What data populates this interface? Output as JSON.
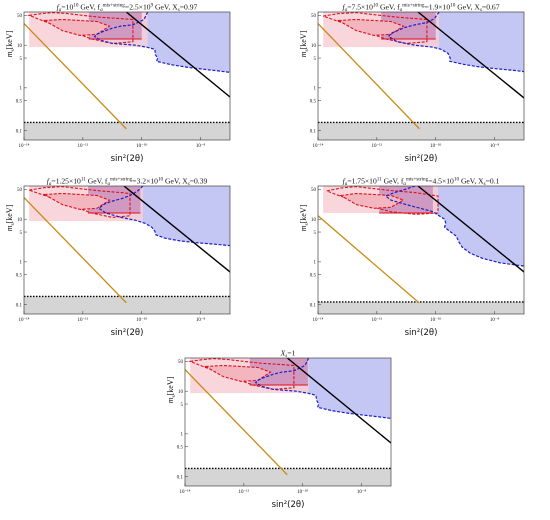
{
  "colors": {
    "blue_fill": "#c4c6f4",
    "blue_line": "#1a1fc9",
    "pink_fill": "#f7cfd6",
    "purple_fill": "#c78cba",
    "red_line": "#e00f1a",
    "black_line": "#000000",
    "orange_line": "#c98a12",
    "gray_fill": "#d5d5d5"
  },
  "chart_data": [
    {
      "type": "area",
      "title_prefix": "f",
      "title_sub1": "a",
      "title_mid": "=10",
      "title_sup1": "10",
      "title_after1": " GeV, f",
      "title_sub2": "a",
      "title_sup2": "mis+string",
      "title_after2": "=2.5×10",
      "title_sup3": "9",
      "title_after3": " GeV, X",
      "title_sub3": "s",
      "title_after4": "=0.97",
      "xlabel": "sin²(2θ)",
      "ylabel_main": "m",
      "ylabel_sub": "s",
      "ylabel_unit": "[keV]",
      "x_scale": "log",
      "xlim": [
        1e-14,
        1e-07
      ],
      "y_scale": "log",
      "ylim": [
        0.06,
        60
      ],
      "x_ticks": [
        "10⁻¹⁴",
        "10⁻¹²",
        "10⁻¹⁰",
        "10⁻⁸"
      ],
      "y_ticks": [
        "0.1",
        "0.5",
        "1",
        "5",
        "10",
        "50"
      ],
      "series": [
        {
          "kind": "blue_boundary",
          "x": [
            1.6e-10,
            1.2e-10,
            8e-11,
            5e-11,
            2e-11,
            1e-11,
            6e-12,
            4e-12,
            3e-12,
            2.5e-12,
            4e-12,
            1e-11,
            6e-11,
            1.5e-10,
            2.8e-10,
            2.9e-10,
            3.5e-10,
            3.2e-10,
            1e-09,
            4e-09,
            1.5e-08,
            4e-08,
            1e-07
          ],
          "y": [
            60,
            40,
            35,
            30,
            28,
            25,
            22,
            20,
            18,
            16,
            13,
            11,
            10,
            9,
            8,
            6,
            5,
            4.2,
            3.5,
            3.0,
            2.7,
            2.5,
            2.3
          ]
        },
        {
          "kind": "purple_region",
          "x": [
            1.6e-12,
            1e-10
          ],
          "y": [
            14,
            60
          ]
        },
        {
          "kind": "pink_region",
          "x": [
            1.5e-14,
            1.6e-10
          ],
          "y": [
            9,
            60
          ]
        },
        {
          "kind": "red_contour_outer",
          "x": [
            1.5e-14,
            4e-14,
            1e-13,
            3e-13,
            1e-12,
            4e-12,
            2e-11,
            5e-11,
            5e-11,
            1e-11,
            2e-12,
            5e-13,
            1.5e-13,
            5e-14,
            1.5e-14
          ],
          "y": [
            50,
            55,
            58,
            55,
            50,
            45,
            42,
            40,
            12,
            11,
            14,
            20,
            28,
            36,
            50
          ]
        },
        {
          "kind": "red_contour_inner",
          "x": [
            5e-14,
            2e-13,
            8e-13,
            3e-12,
            8e-12,
            3e-12,
            8e-13,
            2e-13,
            5e-14
          ],
          "y": [
            38,
            40,
            38,
            36,
            28,
            18,
            17,
            22,
            38
          ]
        },
        {
          "kind": "black_line",
          "x": [
            3e-11,
            1.2e-07
          ],
          "y": [
            60,
            0.55
          ]
        },
        {
          "kind": "orange_line",
          "x": [
            1e-14,
            3e-11
          ],
          "y": [
            32,
            0.11
          ]
        },
        {
          "kind": "gray_region",
          "y": [
            0.06,
            0.155
          ]
        }
      ]
    },
    {
      "type": "area",
      "title_prefix": "f",
      "title_sub1": "a",
      "title_mid": "=7.5×10",
      "title_sup1": "10",
      "title_after1": " GeV, f",
      "title_sub2": "a",
      "title_sup2": "mis+string",
      "title_after2": "=1.9×10",
      "title_sup3": "10",
      "title_after3": " GeV, X",
      "title_sub3": "s",
      "title_after4": "=0.67",
      "xlabel": "sin²(2θ)",
      "ylabel_main": "m",
      "ylabel_sub": "s",
      "ylabel_unit": "[keV]",
      "x_scale": "log",
      "xlim": [
        1e-14,
        1e-07
      ],
      "y_scale": "log",
      "ylim": [
        0.06,
        60
      ],
      "x_ticks": [
        "10⁻¹⁴",
        "10⁻¹²",
        "10⁻¹⁰",
        "10⁻⁸"
      ],
      "y_ticks": [
        "0.1",
        "0.5",
        "1",
        "5",
        "10",
        "50"
      ],
      "series": [
        {
          "kind": "blue_boundary",
          "x": [
            1.3e-10,
            9e-11,
            5e-11,
            2e-11,
            9e-12,
            5e-12,
            3e-12,
            2.5e-12,
            5e-12,
            2e-11,
            8e-11,
            1.5e-10,
            2.6e-10,
            3.1e-10,
            3e-10,
            8e-10,
            3e-09,
            1.2e-08,
            4e-08,
            1e-07
          ],
          "y": [
            60,
            42,
            34,
            30,
            26,
            22,
            19,
            16,
            12,
            10,
            9,
            8,
            6.5,
            5,
            4.2,
            3.6,
            3.1,
            2.8,
            2.6,
            2.4
          ]
        },
        {
          "kind": "purple_region",
          "x": [
            1.4e-12,
            1e-10
          ],
          "y": [
            14,
            60
          ]
        },
        {
          "kind": "pink_region",
          "x": [
            1.5e-14,
            1.3e-10
          ],
          "y": [
            9,
            60
          ]
        },
        {
          "kind": "red_contour_outer",
          "x": [
            1.5e-14,
            5e-14,
            2e-13,
            8e-13,
            4e-12,
            2e-11,
            5e-11,
            5e-11,
            1e-11,
            2e-12,
            5e-13,
            1.5e-13,
            5e-14,
            1.5e-14
          ],
          "y": [
            48,
            55,
            58,
            52,
            46,
            42,
            40,
            12,
            11,
            14,
            20,
            28,
            36,
            48
          ]
        },
        {
          "kind": "red_contour_inner",
          "x": [
            5e-14,
            2e-13,
            8e-13,
            3e-12,
            8e-12,
            3e-12,
            8e-13,
            2e-13,
            5e-14
          ],
          "y": [
            38,
            40,
            38,
            36,
            28,
            18,
            17,
            22,
            38
          ]
        },
        {
          "kind": "black_line",
          "x": [
            2.5e-11,
            1.1e-07
          ],
          "y": [
            60,
            0.55
          ]
        },
        {
          "kind": "orange_line",
          "x": [
            1e-14,
            2.8e-11
          ],
          "y": [
            32,
            0.11
          ]
        },
        {
          "kind": "gray_region",
          "y": [
            0.06,
            0.155
          ]
        }
      ]
    },
    {
      "type": "area",
      "title_prefix": "f",
      "title_sub1": "a",
      "title_mid": "=1.25×10",
      "title_sup1": "11",
      "title_after1": " GeV, f",
      "title_sub2": "a",
      "title_sup2": "mis+string",
      "title_after2": "=3.2×10",
      "title_sup3": "10",
      "title_after3": " GeV, X",
      "title_sub3": "s",
      "title_after4": "=0.39",
      "xlabel": "sin²(2θ)",
      "ylabel_main": "m",
      "ylabel_sub": "s",
      "ylabel_unit": "[keV]",
      "x_scale": "log",
      "xlim": [
        1e-14,
        1e-07
      ],
      "y_scale": "log",
      "ylim": [
        0.06,
        60
      ],
      "x_ticks": [
        "10⁻¹⁴",
        "10⁻¹²",
        "10⁻¹⁰",
        "10⁻⁸"
      ],
      "y_ticks": [
        "0.1",
        "0.5",
        "1",
        "5",
        "10",
        "50"
      ],
      "series": [
        {
          "kind": "blue_boundary",
          "x": [
            1.1e-10,
            7e-11,
            4e-11,
            2e-11,
            9e-12,
            5e-12,
            3.5e-12,
            6e-12,
            2e-11,
            6e-11,
            1.3e-10,
            2.2e-10,
            2.8e-10,
            3e-10,
            6e-10,
            2e-09,
            8e-09,
            3e-08,
            1e-07
          ],
          "y": [
            60,
            45,
            36,
            30,
            26,
            22,
            18,
            14,
            11,
            9.5,
            8,
            6.5,
            5.2,
            4.3,
            3.6,
            3.1,
            2.8,
            2.6,
            2.4
          ]
        },
        {
          "kind": "purple_region",
          "x": [
            1.5e-12,
            9e-11
          ],
          "y": [
            14,
            60
          ]
        },
        {
          "kind": "pink_region",
          "x": [
            1.5e-14,
            1.1e-10
          ],
          "y": [
            9,
            60
          ]
        },
        {
          "kind": "red_contour_outer",
          "x": [
            1.5e-14,
            5e-14,
            2e-13,
            8e-13,
            4e-12,
            2e-11,
            4e-11,
            4e-11,
            1e-11,
            2e-12,
            5e-13,
            1.5e-13,
            5e-14,
            1.5e-14
          ],
          "y": [
            48,
            55,
            58,
            52,
            46,
            42,
            40,
            12,
            11,
            14,
            20,
            28,
            36,
            48
          ]
        },
        {
          "kind": "red_contour_inner",
          "x": [
            5e-14,
            2e-13,
            8e-13,
            3e-12,
            8e-12,
            3e-12,
            8e-13,
            2e-13,
            5e-14
          ],
          "y": [
            38,
            40,
            38,
            36,
            28,
            18,
            17,
            22,
            38
          ]
        },
        {
          "kind": "black_line",
          "x": [
            2.5e-11,
            1.1e-07
          ],
          "y": [
            60,
            0.55
          ]
        },
        {
          "kind": "orange_line",
          "x": [
            1e-14,
            3e-11
          ],
          "y": [
            32,
            0.11
          ]
        },
        {
          "kind": "gray_region",
          "y": [
            0.06,
            0.155
          ]
        }
      ]
    },
    {
      "type": "area",
      "title_prefix": "f",
      "title_sub1": "a",
      "title_mid": "=1.75×10",
      "title_sup1": "11",
      "title_after1": " GeV, f",
      "title_sub2": "a",
      "title_sup2": "mis+string",
      "title_after2": "=4.5×10",
      "title_sup3": "10",
      "title_after3": " GeV, X",
      "title_sub3": "s",
      "title_after4": "=0.1",
      "xlabel": "sin²(2θ)",
      "ylabel_main": "m",
      "ylabel_sub": "s",
      "ylabel_unit": "[keV]",
      "x_scale": "log",
      "xlim": [
        1e-14,
        1e-07
      ],
      "y_scale": "log",
      "ylim": [
        0.06,
        60
      ],
      "x_ticks": [
        "10⁻¹⁴",
        "10⁻¹²",
        "10⁻¹⁰",
        "10⁻⁸"
      ],
      "y_ticks": [
        "0.1",
        "0.5",
        "1",
        "5",
        "10",
        "50"
      ],
      "series": [
        {
          "kind": "blue_boundary",
          "x": [
            2e-11,
            9e-12,
            4e-12,
            2e-12,
            3e-12,
            1e-11,
            3e-11,
            8e-11,
            1.3e-10,
            2e-10,
            2.2e-10,
            2e-10,
            3e-10,
            5e-10,
            6e-10,
            8e-10,
            1.5e-09,
            4e-09,
            1.5e-08,
            5e-08,
            1e-07
          ],
          "y": [
            60,
            50,
            42,
            35,
            28,
            22,
            18,
            15,
            12,
            10,
            8,
            6.5,
            5.2,
            4,
            3,
            2.2,
            1.6,
            1.2,
            0.95,
            0.85,
            0.8
          ]
        },
        {
          "kind": "purple_region",
          "x": [
            1.2e-12,
            8e-11
          ],
          "y": [
            14,
            60
          ]
        },
        {
          "kind": "pink_region",
          "x": [
            1.5e-14,
            1.2e-10
          ],
          "y": [
            14,
            60
          ]
        },
        {
          "kind": "red_contour_outer",
          "x": [
            2e-14,
            6e-14,
            2e-13,
            8e-13,
            4e-12,
            2e-11,
            1.2e-10,
            1.2e-10,
            2e-11,
            3e-12,
            6e-13,
            1.5e-13,
            5e-14,
            2e-14
          ],
          "y": [
            46,
            54,
            58,
            52,
            46,
            42,
            35,
            14,
            13,
            15,
            20,
            28,
            36,
            46
          ]
        },
        {
          "kind": "red_contour_inner",
          "x": [
            6e-14,
            2e-13,
            8e-13,
            3e-12,
            8e-12,
            3e-12,
            8e-13,
            2e-13,
            6e-14
          ],
          "y": [
            36,
            40,
            38,
            36,
            28,
            19,
            18,
            22,
            36
          ]
        },
        {
          "kind": "black_line",
          "x": [
            2.5e-11,
            1.1e-07
          ],
          "y": [
            60,
            0.55
          ]
        },
        {
          "kind": "orange_line",
          "x": [
            1e-14,
            2.7e-11
          ],
          "y": [
            12,
            0.11
          ]
        },
        {
          "kind": "gray_region",
          "y": [
            0.06,
            0.115
          ]
        }
      ]
    },
    {
      "type": "area",
      "title_prefix": "X",
      "title_sub1": "s",
      "title_mid": "=1",
      "title_sup1": "",
      "title_after1": "",
      "title_sub2": "",
      "title_sup2": "",
      "title_after2": "",
      "title_sup3": "",
      "title_after3": "",
      "title_sub3": "",
      "title_after4": "",
      "xlabel": "sin²(2θ)",
      "ylabel_main": "m",
      "ylabel_sub": "s",
      "ylabel_unit": "[keV]",
      "x_scale": "log",
      "xlim": [
        1e-14,
        1e-07
      ],
      "y_scale": "log",
      "ylim": [
        0.06,
        60
      ],
      "x_ticks": [
        "10⁻¹⁴",
        "10⁻¹²",
        "10⁻¹⁰",
        "10⁻⁸"
      ],
      "y_ticks": [
        "0.1",
        "0.5",
        "1",
        "5",
        "10",
        "50"
      ],
      "series": [
        {
          "kind": "blue_boundary",
          "x": [
            1.6e-10,
            1.2e-10,
            8e-11,
            5e-11,
            2e-11,
            1e-11,
            6e-12,
            4e-12,
            3e-12,
            2.5e-12,
            4e-12,
            1e-11,
            6e-11,
            1.5e-10,
            2.8e-10,
            3e-10,
            3.5e-10,
            3.2e-10,
            1e-09,
            4e-09,
            1.5e-08,
            4e-08,
            1e-07
          ],
          "y": [
            60,
            40,
            35,
            30,
            28,
            25,
            22,
            20,
            18,
            16,
            13,
            11,
            10,
            9,
            8,
            6,
            5,
            4.2,
            3.5,
            3.0,
            2.7,
            2.5,
            2.3
          ]
        },
        {
          "kind": "purple_region",
          "x": [
            1.6e-12,
            1.5e-10
          ],
          "y": [
            14,
            60
          ]
        },
        {
          "kind": "pink_region",
          "x": [
            1.5e-14,
            1.6e-10
          ],
          "y": [
            9,
            60
          ]
        },
        {
          "kind": "red_contour_outer",
          "x": [
            1.5e-14,
            4e-14,
            1e-13,
            3e-13,
            1e-12,
            4e-12,
            2e-11,
            5e-11,
            5e-11,
            1e-11,
            2e-12,
            5e-13,
            1.5e-13,
            5e-14,
            1.5e-14
          ],
          "y": [
            50,
            55,
            58,
            55,
            50,
            45,
            42,
            40,
            12,
            11,
            14,
            20,
            28,
            36,
            50
          ]
        },
        {
          "kind": "red_contour_inner",
          "x": [
            5e-14,
            2e-13,
            8e-13,
            3e-12,
            8e-12,
            3e-12,
            8e-13,
            2e-13,
            5e-14
          ],
          "y": [
            38,
            40,
            38,
            36,
            28,
            18,
            17,
            22,
            38
          ]
        },
        {
          "kind": "black_line",
          "x": [
            3e-11,
            1.2e-07
          ],
          "y": [
            60,
            0.55
          ]
        },
        {
          "kind": "orange_line",
          "x": [
            1e-14,
            3e-11
          ],
          "y": [
            32,
            0.11
          ]
        },
        {
          "kind": "gray_region",
          "y": [
            0.06,
            0.155
          ]
        }
      ]
    }
  ]
}
